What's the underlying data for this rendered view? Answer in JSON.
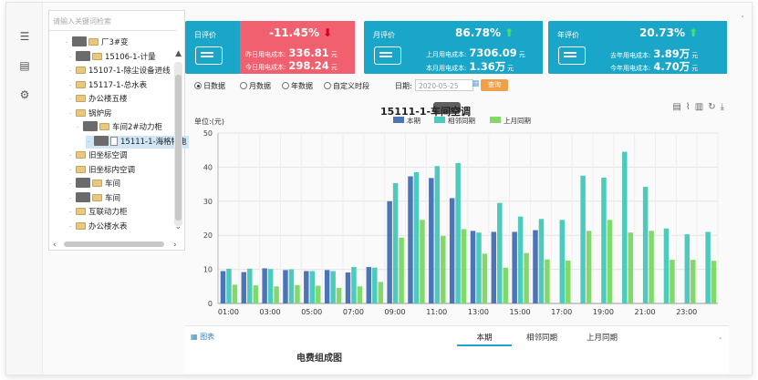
{
  "tree": {
    "search_placeholder": "请输入关键词检索",
    "nodes": [
      {
        "label": "厂3#变",
        "type": "folder",
        "masked": true
      },
      {
        "label": "15106-1-计量",
        "type": "folder",
        "masked": true
      },
      {
        "label": "15107-1-除尘设备进线",
        "type": "folder"
      },
      {
        "label": "15117-1-总水表",
        "type": "folder"
      },
      {
        "label": "办公楼五楼",
        "type": "folder"
      },
      {
        "label": "锅炉房",
        "type": "folder"
      },
      {
        "label": "车间2#动力柜",
        "type": "folder",
        "masked": true
      },
      {
        "label": "15111-1-海格特电",
        "type": "file",
        "masked": true
      },
      {
        "label": "旧坐标空调",
        "type": "folder"
      },
      {
        "label": "旧坐标内空调",
        "type": "folder"
      },
      {
        "label": "车间",
        "type": "folder",
        "masked": true
      },
      {
        "label": "车间",
        "type": "folder",
        "masked": true
      },
      {
        "label": "互联动力柜",
        "type": "folder"
      },
      {
        "label": "办公楼水表",
        "type": "folder"
      }
    ]
  },
  "rail": {
    "icons": [
      "list-icon",
      "document-icon",
      "gear-icon"
    ]
  },
  "kpis": [
    {
      "label": "日评价",
      "pct": "-11.45%",
      "trend": "down",
      "rows": [
        {
          "label": "昨日用电成本:",
          "value": "336.81",
          "unit": "元"
        },
        {
          "label": "今日用电成本:",
          "value": "298.24",
          "unit": "元"
        }
      ],
      "body_color": "#f0606e"
    },
    {
      "label": "月评价",
      "pct": "86.78%",
      "trend": "up",
      "rows": [
        {
          "label": "上月用电成本:",
          "value": "7306.09",
          "unit": "元"
        },
        {
          "label": "本月用电成本:",
          "value": "1.36万",
          "unit": "元"
        }
      ],
      "body_color": "#1aa6c9"
    },
    {
      "label": "年评价",
      "pct": "20.73%",
      "trend": "up",
      "rows": [
        {
          "label": "去年用电成本:",
          "value": "3.89万",
          "unit": "元"
        },
        {
          "label": "今年用电成本:",
          "value": "4.70万",
          "unit": "元"
        }
      ],
      "body_color": "#1aa6c9"
    }
  ],
  "controls": {
    "options": [
      "日数据",
      "月数据",
      "年数据",
      "自定义时段"
    ],
    "selected": "日数据",
    "date_label": "日期:",
    "date_value": "2020-05-25",
    "search_label": "查询"
  },
  "chart_data": {
    "type": "bar",
    "title": "15111-1-车间空调",
    "ylabel": "单位:(元)",
    "ylim": [
      0,
      50
    ],
    "yticks": [
      0,
      10,
      20,
      30,
      40,
      50
    ],
    "x": [
      "01:00",
      "02:00",
      "03:00",
      "04:00",
      "05:00",
      "06:00",
      "07:00",
      "08:00",
      "09:00",
      "10:00",
      "11:00",
      "12:00",
      "13:00",
      "14:00",
      "15:00",
      "16:00",
      "17:00",
      "18:00",
      "19:00",
      "20:00",
      "21:00",
      "22:00",
      "23:00",
      "24:00"
    ],
    "xtick_labels": [
      "01:00",
      "03:00",
      "05:00",
      "07:00",
      "09:00",
      "11:00",
      "13:00",
      "15:00",
      "17:00",
      "19:00",
      "21:00",
      "23:00"
    ],
    "series": [
      {
        "name": "本期",
        "color": "#4e74b8",
        "values": [
          9.5,
          9.2,
          10.3,
          9.8,
          9.5,
          9.8,
          9.1,
          10.7,
          30.0,
          37.3,
          36.8,
          30.9,
          21.3,
          21.0,
          21.0,
          21.5,
          null,
          null,
          null,
          null,
          null,
          null,
          null,
          null
        ]
      },
      {
        "name": "相邻同期",
        "color": "#4ccbbd",
        "values": [
          10.2,
          10.2,
          10.1,
          10.0,
          9.5,
          9.5,
          10.7,
          10.5,
          35.3,
          38.5,
          40.3,
          41.2,
          20.8,
          29.5,
          25.5,
          24.8,
          24.5,
          37.5,
          36.9,
          44.5,
          34.2,
          22.0,
          20.3,
          21.0
        ]
      },
      {
        "name": "上月同期",
        "color": "#82d86a",
        "values": [
          5.5,
          5.3,
          5.0,
          5.4,
          5.2,
          4.6,
          5.0,
          6.3,
          19.3,
          24.5,
          19.8,
          21.8,
          14.6,
          10.5,
          14.8,
          12.9,
          12.6,
          21.3,
          24.5,
          20.8,
          21.3,
          12.8,
          12.8,
          12.5
        ]
      }
    ],
    "grid": true,
    "legend": "top-center"
  },
  "bottom": {
    "label": "图表",
    "tabs": [
      "本期",
      "相邻同期",
      "上月同期"
    ],
    "active_tab": "本期",
    "sub_title": "电费组成图"
  },
  "chart_tools": {
    "icons": [
      "document-icon",
      "line-chart-icon",
      "bar-chart-icon",
      "refresh-icon",
      "download-icon"
    ]
  }
}
